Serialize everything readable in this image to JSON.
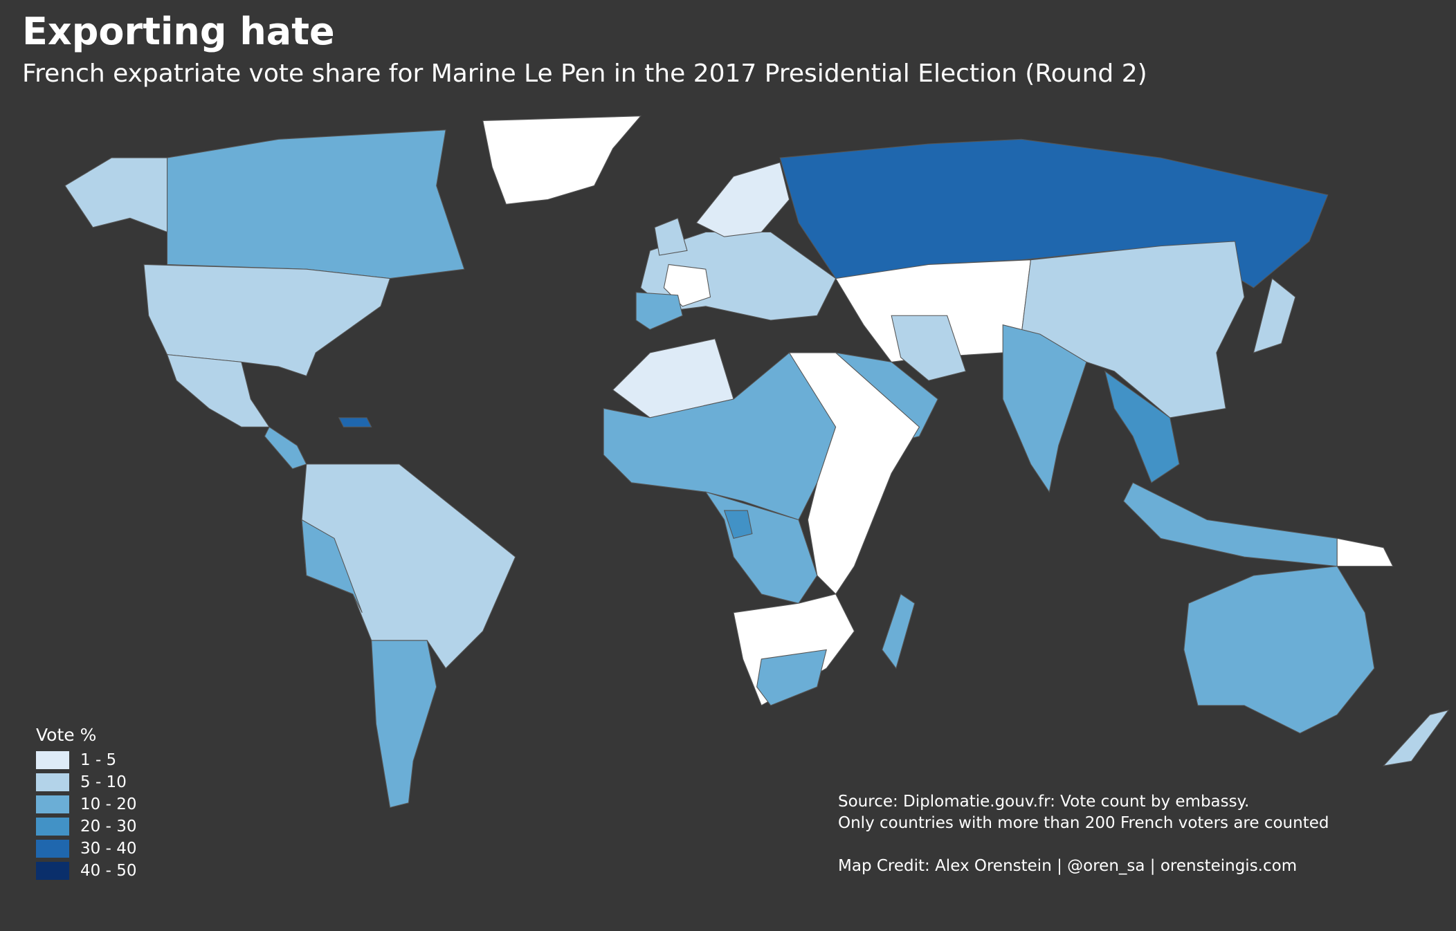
{
  "title": "Exporting hate",
  "subtitle": "French expatriate vote share for Marine Le Pen in the 2017 Presidential Election (Round 2)",
  "legend": {
    "title": "Vote %",
    "items": [
      {
        "label": "1 - 5",
        "color": "#deebf7"
      },
      {
        "label": "5 - 10",
        "color": "#b3d3e9"
      },
      {
        "label": "10 - 20",
        "color": "#6baed6"
      },
      {
        "label": "20 - 30",
        "color": "#4292c6"
      },
      {
        "label": "30 - 40",
        "color": "#1f67ae"
      },
      {
        "label": "40 - 50",
        "color": "#0a2f6b"
      }
    ]
  },
  "no_data_color": "#ffffff",
  "background_color": "#373737",
  "source": {
    "line1": "Source: Diplomatie.gouv.fr: Vote count by embassy.",
    "line2": "Only countries with more than 200 French voters are counted",
    "credit": "Map Credit: Alex Orenstein | @oren_sa | orensteingis.com"
  }
}
